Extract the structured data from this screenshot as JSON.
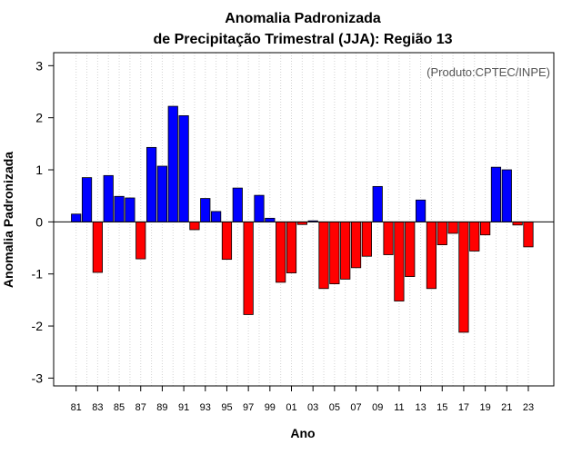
{
  "chart_data": {
    "type": "bar",
    "title": "Anomalia Padronizada",
    "subtitle": "de Precipitação Trimestral (JJA): Região 13",
    "xlabel": "Ano",
    "ylabel": "Anomalia Padronizada",
    "annotation": "(Produto:CPTEC/INPE)",
    "ylim": [
      -3.15,
      3.25
    ],
    "yticks": [
      -3,
      -2,
      -1,
      0,
      1,
      2,
      3
    ],
    "ytick_labels": [
      "-3",
      "-2",
      "-1",
      "0",
      "1",
      "2",
      "3"
    ],
    "grid": true,
    "categories": [
      "81",
      "82",
      "83",
      "84",
      "85",
      "86",
      "87",
      "88",
      "89",
      "90",
      "91",
      "92",
      "93",
      "94",
      "95",
      "96",
      "97",
      "98",
      "99",
      "00",
      "01",
      "02",
      "03",
      "04",
      "05",
      "06",
      "07",
      "08",
      "09",
      "10",
      "11",
      "12",
      "13",
      "14",
      "15",
      "16",
      "17",
      "18",
      "19",
      "20",
      "21",
      "22",
      "23"
    ],
    "xtick_labels": [
      "81",
      "83",
      "85",
      "87",
      "89",
      "91",
      "93",
      "95",
      "97",
      "99",
      "01",
      "03",
      "05",
      "07",
      "09",
      "11",
      "13",
      "15",
      "17",
      "19",
      "21",
      "23"
    ],
    "values": [
      0.15,
      0.85,
      -0.97,
      0.89,
      0.49,
      0.46,
      -0.71,
      1.43,
      1.07,
      2.22,
      2.04,
      -0.15,
      0.45,
      0.2,
      -0.72,
      0.65,
      -1.78,
      0.51,
      0.07,
      -1.16,
      -0.98,
      -0.05,
      0.02,
      -1.28,
      -1.19,
      -1.1,
      -0.88,
      -0.66,
      0.68,
      -0.63,
      -1.52,
      -1.05,
      0.42,
      -1.28,
      -0.44,
      -0.22,
      -2.12,
      -0.56,
      -0.25,
      1.05,
      1.0,
      -0.06,
      -0.48
    ],
    "colors": {
      "positive": "#0000ff",
      "negative": "#ff0000",
      "outline": "#000000",
      "grid": "#d3d3d3"
    }
  }
}
